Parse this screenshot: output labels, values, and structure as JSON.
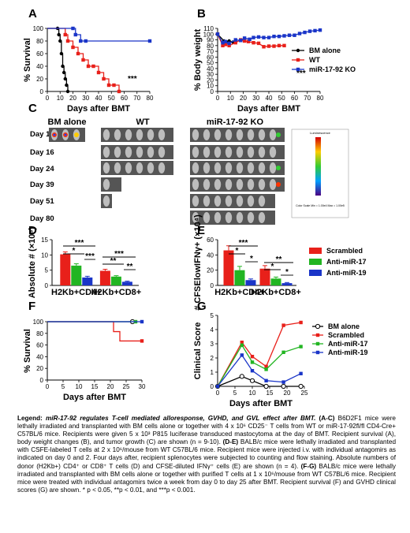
{
  "panels": [
    "A",
    "B",
    "C",
    "D",
    "E",
    "F",
    "G"
  ],
  "chart_data": [
    {
      "panel": "A",
      "type": "line",
      "ylabel": "% Survival",
      "xlabel": "Days after BMT",
      "xlim": [
        0,
        80
      ],
      "ylim": [
        0,
        100
      ],
      "xticks": [
        "0",
        "10",
        "20",
        "30",
        "40",
        "50",
        "60",
        "70",
        "80"
      ],
      "yticks": [
        "0",
        "20",
        "40",
        "60",
        "80",
        "100"
      ],
      "significance": "***",
      "series": [
        {
          "name": "BM alone",
          "color": "#000000",
          "marker": "circle",
          "x": [
            0,
            8,
            9,
            10,
            11,
            12,
            13,
            14,
            15,
            16
          ],
          "y": [
            100,
            100,
            90,
            80,
            60,
            40,
            30,
            20,
            10,
            0
          ]
        },
        {
          "name": "WT",
          "color": "#e8201a",
          "marker": "square",
          "x": [
            0,
            14,
            16,
            20,
            24,
            28,
            32,
            36,
            40,
            44,
            48,
            52,
            56
          ],
          "y": [
            100,
            90,
            80,
            70,
            60,
            50,
            40,
            40,
            30,
            20,
            10,
            10,
            0
          ]
        },
        {
          "name": "miR-17-92 KO",
          "color": "#1a35c8",
          "marker": "square",
          "x": [
            0,
            20,
            22,
            26,
            30,
            80
          ],
          "y": [
            100,
            100,
            90,
            80,
            80,
            80
          ]
        }
      ]
    },
    {
      "panel": "B",
      "type": "line",
      "ylabel": "% Body weight",
      "xlabel": "Days after BMT",
      "xlim": [
        0,
        80
      ],
      "ylim": [
        0,
        110
      ],
      "xticks": [
        "0",
        "10",
        "20",
        "30",
        "40",
        "50",
        "60",
        "70",
        "80"
      ],
      "yticks": [
        "0",
        "10",
        "20",
        "30",
        "40",
        "50",
        "60",
        "70",
        "80",
        "90",
        "100",
        "110"
      ],
      "significance": "***",
      "series": [
        {
          "name": "BM alone",
          "color": "#000000",
          "marker": "circle",
          "x": [
            0,
            5,
            7,
            9,
            12
          ],
          "y": [
            100,
            88,
            86,
            88,
            86
          ]
        },
        {
          "name": "WT",
          "color": "#e8201a",
          "marker": "square",
          "x": [
            0,
            4,
            6,
            9,
            14,
            18,
            21,
            24,
            28,
            32,
            36,
            40,
            44,
            48,
            52
          ],
          "y": [
            100,
            80,
            82,
            80,
            85,
            90,
            88,
            87,
            85,
            84,
            78,
            79,
            79,
            80,
            80
          ]
        },
        {
          "name": "miR-17-92 KO",
          "color": "#1a35c8",
          "marker": "square",
          "x": [
            0,
            4,
            6,
            9,
            14,
            18,
            21,
            25,
            28,
            32,
            36,
            40,
            44,
            48,
            52,
            56,
            60,
            64,
            68,
            72,
            76,
            80
          ],
          "y": [
            100,
            85,
            87,
            84,
            90,
            89,
            93,
            91,
            94,
            95,
            94,
            94,
            96,
            96,
            97,
            98,
            98,
            101,
            103,
            105,
            106,
            107
          ]
        }
      ]
    },
    {
      "panel": "D",
      "type": "bar",
      "ylabel": "Absolute # (×10⁵)",
      "ylim": [
        0,
        15
      ],
      "yticks": [
        "0",
        "5",
        "10",
        "15"
      ],
      "categories": [
        "H2Kb+CD4+",
        "H2Kb+CD8+"
      ],
      "series": [
        {
          "name": "Scrambled",
          "color": "#e8201a",
          "values": [
            10.2,
            4.8
          ],
          "err": [
            0.8,
            0.5
          ]
        },
        {
          "name": "Anti-miR-17",
          "color": "#22b522",
          "values": [
            6.5,
            2.9
          ],
          "err": [
            0.6,
            0.3
          ]
        },
        {
          "name": "Anti-miR-19",
          "color": "#1a35c8",
          "values": [
            2.6,
            1.2
          ],
          "err": [
            0.4,
            0.2
          ]
        }
      ],
      "significance": [
        "***",
        "*",
        "***",
        "***",
        "**",
        "**"
      ]
    },
    {
      "panel": "E",
      "type": "bar",
      "ylabel": "# CFSElowIFNγ+ (×10⁴)",
      "ylim": [
        0,
        60
      ],
      "yticks": [
        "0",
        "20",
        "40",
        "60"
      ],
      "categories": [
        "H2Kb+CD4+",
        "H2Kb+CD8+"
      ],
      "series": [
        {
          "name": "Scrambled",
          "color": "#e8201a",
          "values": [
            46,
            22
          ],
          "err": [
            6,
            4
          ]
        },
        {
          "name": "Anti-miR-17",
          "color": "#22b522",
          "values": [
            20,
            9
          ],
          "err": [
            5,
            2
          ]
        },
        {
          "name": "Anti-miR-19",
          "color": "#1a35c8",
          "values": [
            7,
            3
          ],
          "err": [
            1.5,
            0.8
          ]
        }
      ],
      "significance": [
        "***",
        "*",
        "*",
        "**",
        "*",
        "*"
      ]
    },
    {
      "panel": "F",
      "type": "line",
      "ylabel": "% Survival",
      "xlabel": "Days after BMT",
      "xlim": [
        0,
        30
      ],
      "ylim": [
        0,
        100
      ],
      "xticks": [
        "0",
        "5",
        "10",
        "15",
        "20",
        "25",
        "30"
      ],
      "yticks": [
        "0",
        "20",
        "40",
        "60",
        "80",
        "100"
      ],
      "series": [
        {
          "name": "BM alone",
          "color": "#000000",
          "marker": "open-circle",
          "x": [
            0,
            27
          ],
          "y": [
            100,
            100
          ]
        },
        {
          "name": "Scrambled",
          "color": "#e8201a",
          "marker": "square",
          "x": [
            0,
            20,
            21,
            22,
            23,
            30
          ],
          "y": [
            100,
            100,
            83,
            83,
            67,
            67
          ]
        },
        {
          "name": "Anti-miR-17",
          "color": "#22b522",
          "marker": "square",
          "x": [
            0,
            28
          ],
          "y": [
            100,
            100
          ]
        },
        {
          "name": "Anti-miR-19",
          "color": "#1a35c8",
          "marker": "square",
          "x": [
            0,
            30
          ],
          "y": [
            100,
            100
          ]
        }
      ]
    },
    {
      "panel": "G",
      "type": "line",
      "ylabel": "Clinical Score",
      "xlabel": "Days after BMT",
      "xlim": [
        0,
        25
      ],
      "ylim": [
        0,
        5
      ],
      "xticks": [
        "0",
        "5",
        "10",
        "15",
        "20",
        "25"
      ],
      "yticks": [
        "0",
        "1",
        "2",
        "3",
        "4",
        "5"
      ],
      "series": [
        {
          "name": "BM alone",
          "color": "#000000",
          "marker": "open-circle",
          "x": [
            0,
            7,
            10,
            14,
            19,
            24
          ],
          "y": [
            0,
            0.7,
            0.4,
            0,
            0,
            0
          ]
        },
        {
          "name": "Scrambled",
          "color": "#e8201a",
          "marker": "square",
          "x": [
            0,
            7,
            10,
            14,
            19,
            24
          ],
          "y": [
            0,
            3.1,
            2.1,
            1.4,
            4.3,
            4.5
          ]
        },
        {
          "name": "Anti-miR-17",
          "color": "#22b522",
          "marker": "square",
          "x": [
            0,
            7,
            10,
            14,
            19,
            24
          ],
          "y": [
            0,
            2.9,
            1.7,
            1.2,
            2.4,
            2.8
          ]
        },
        {
          "name": "Anti-miR-19",
          "color": "#1a35c8",
          "marker": "square",
          "x": [
            0,
            7,
            10,
            14,
            19,
            24
          ],
          "y": [
            0,
            2.2,
            1.1,
            0.4,
            0.3,
            0.9
          ]
        }
      ]
    }
  ],
  "panel_c": {
    "columns": [
      "BM alone",
      "WT",
      "miR-17-92 KO"
    ],
    "rows": [
      "Day 11",
      "Day 16",
      "Day 24",
      "Day 39",
      "Day 51",
      "Day 80"
    ],
    "colorbar_title": "Luminescence",
    "colorbar_note": "Color Scale\nMin = 1.00e4\nMax = 1.00e5"
  },
  "def_legend": {
    "items": [
      {
        "label": "Scrambled",
        "color": "#e8201a"
      },
      {
        "label": "Anti-miR-17",
        "color": "#22b522"
      },
      {
        "label": "Anti-miR-19",
        "color": "#1a35c8"
      }
    ]
  },
  "bar_xlabels": {
    "cd4": "H2Kb+CD4+",
    "cd8": "H2Kb+CD8+"
  },
  "legend_text": {
    "heading": "Legend:",
    "title": "miR-17-92 regulates T-cell mediated alloresponse, GVHD, and GVL effect after BMT.",
    "ac": "(A-C)",
    "p1": " B6D2F1 mice were lethally irradiated and transplanted with BM cells alone or together with 4 x 10⁶ CD25⁻ T cells from WT or miR-17-92fl/fl CD4-Cre+ C57BL/6 mice. Recipients were given 5 x 10³ P815 luciferase transduced mastocytoma at the day of BMT.  Recipient survival (A), body weight changes (B), and tumor growth (C) are shown (n = 9-10). ",
    "de": "(D-E)",
    "p2": " BALB/c mice were lethally irradiated and transplanted with CSFE-labeled T cells at 2 x 10⁶/mouse from WT C57BL/6 mice.  Recipient mice were injected i.v. with individual antagomirs as indicated on day 0 and 2.  Four days after, recipient splenocytes were subjected to counting and flow staining. Absolute numbers of donor (H2Kb+) CD4⁺ or CD8⁺ T cells (D) and CFSE-diluted IFNγ⁺ cells (E) are shown (n = 4). ",
    "fg": "(F-G)",
    "p3": " BALB/c mice were lethally irradiated and transplanted with BM cells alone or together with purified T cells at 1 x 10⁶/mouse from WT C57BL/6 mice. Recipient mice were treated with individual antagomirs twice a week from day 0 to day 25 after BMT. Recipient survival (F) and GVHD clinical scores (G) are shown.  * p < 0.05, **p < 0.01, and ***p < 0.001."
  }
}
